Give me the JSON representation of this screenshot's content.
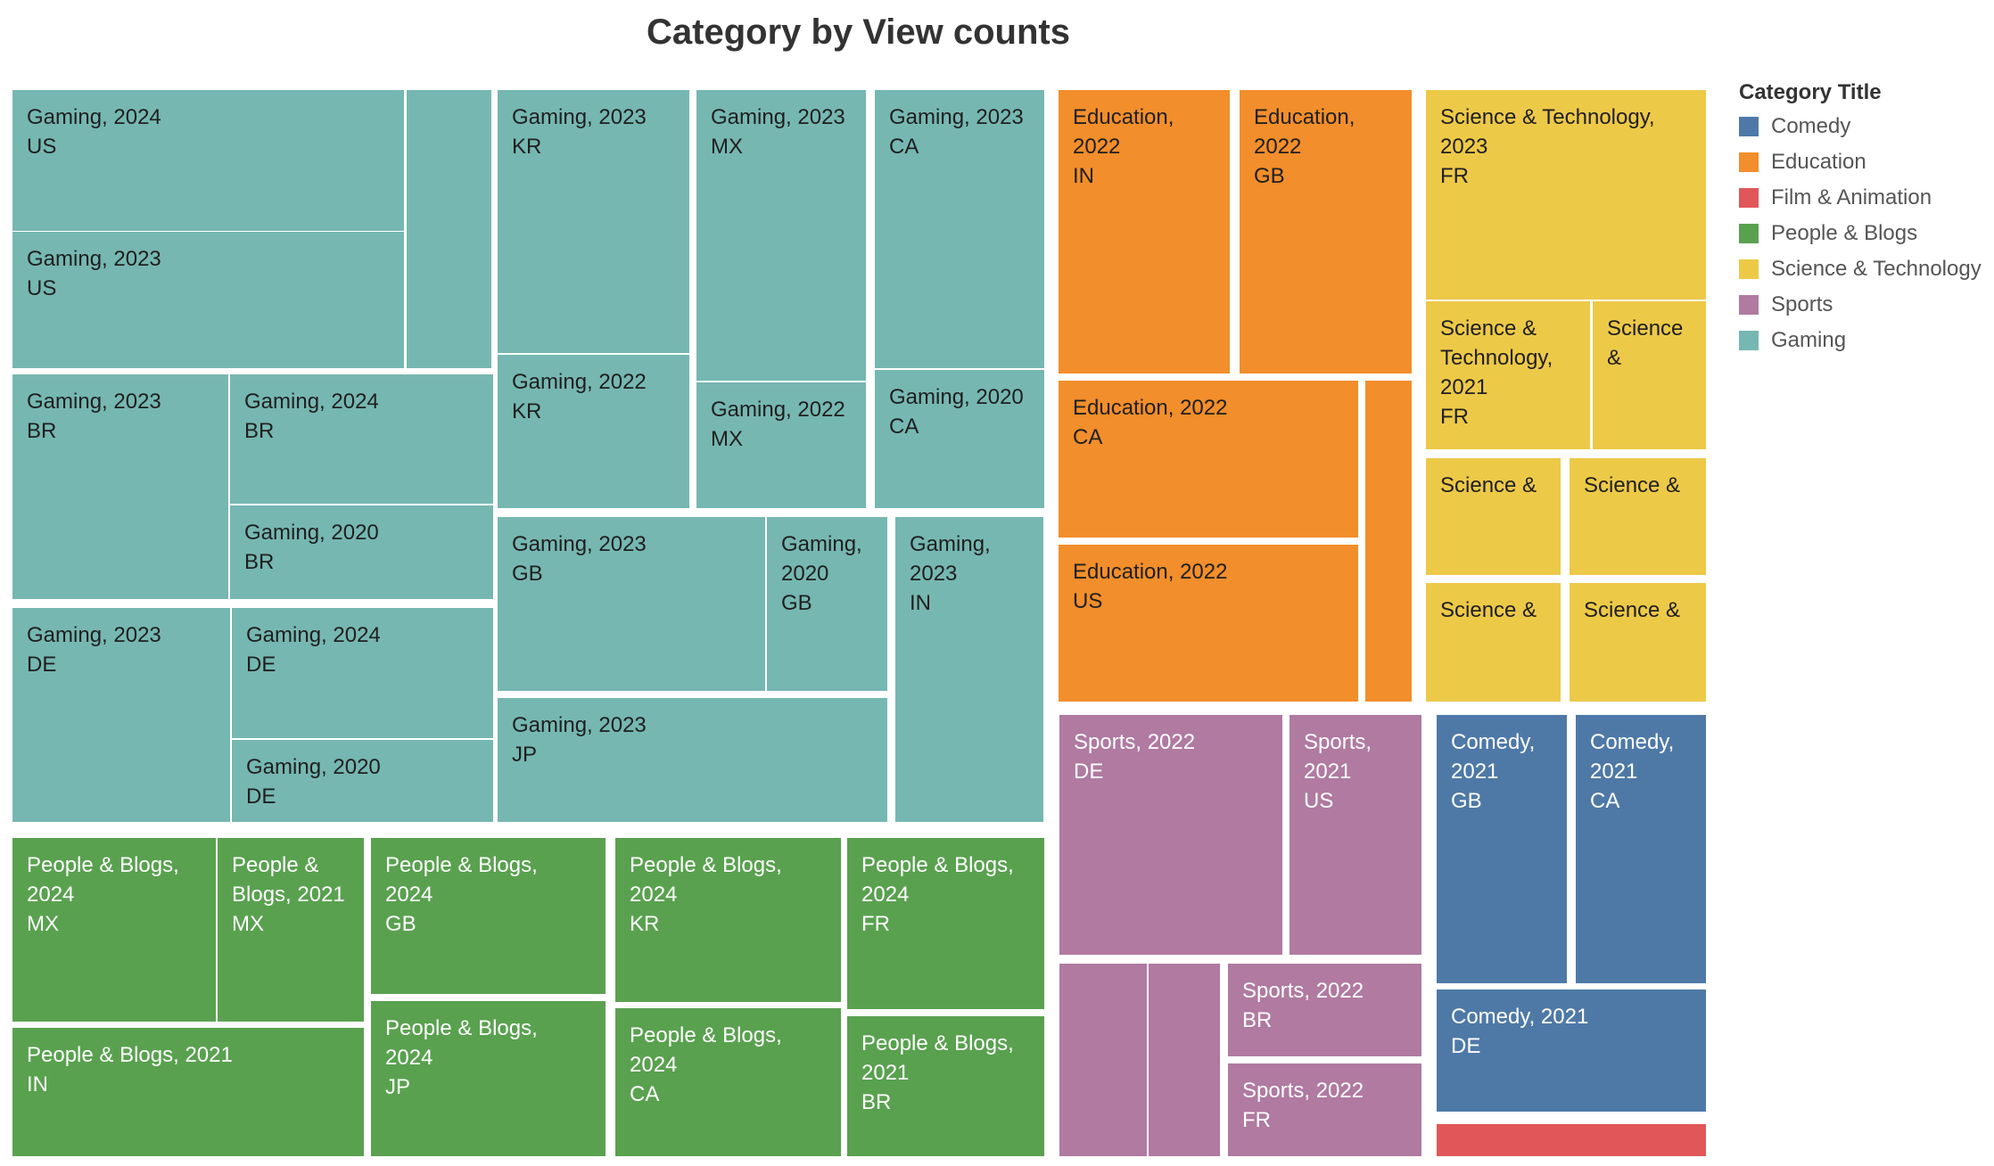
{
  "chart_data": {
    "type": "treemap",
    "title": "Category by View counts",
    "legend_title": "Category Title",
    "legend_position": "right",
    "legend": [
      {
        "name": "Comedy",
        "color": "#4e79a7"
      },
      {
        "name": "Education",
        "color": "#f28e2b"
      },
      {
        "name": "Film & Animation",
        "color": "#e15759"
      },
      {
        "name": "People & Blogs",
        "color": "#59a14f"
      },
      {
        "name": "Science & Technology",
        "color": "#edc948"
      },
      {
        "name": "Sports",
        "color": "#b07aa1"
      },
      {
        "name": "Gaming",
        "color": "#76b7b2"
      }
    ],
    "tiles": [
      {
        "category": "Gaming",
        "year": "2024",
        "country": "US",
        "label": "Gaming, 2024\nUS"
      },
      {
        "category": "Gaming",
        "year": "",
        "country": "",
        "label": ""
      },
      {
        "category": "Gaming",
        "year": "2023",
        "country": "US",
        "label": "Gaming, 2023\nUS"
      },
      {
        "category": "Gaming",
        "year": "2023",
        "country": "BR",
        "label": "Gaming, 2023\nBR"
      },
      {
        "category": "Gaming",
        "year": "2024",
        "country": "BR",
        "label": "Gaming, 2024\nBR"
      },
      {
        "category": "Gaming",
        "year": "2020",
        "country": "BR",
        "label": "Gaming, 2020\nBR"
      },
      {
        "category": "Gaming",
        "year": "2023",
        "country": "DE",
        "label": "Gaming, 2023\nDE"
      },
      {
        "category": "Gaming",
        "year": "2024",
        "country": "DE",
        "label": "Gaming, 2024\nDE"
      },
      {
        "category": "Gaming",
        "year": "2020",
        "country": "DE",
        "label": "Gaming, 2020\nDE"
      },
      {
        "category": "Gaming",
        "year": "2023",
        "country": "KR",
        "label": "Gaming, 2023\nKR"
      },
      {
        "category": "Gaming",
        "year": "2022",
        "country": "KR",
        "label": "Gaming, 2022\nKR"
      },
      {
        "category": "Gaming",
        "year": "2023",
        "country": "MX",
        "label": "Gaming, 2023\nMX"
      },
      {
        "category": "Gaming",
        "year": "2022",
        "country": "MX",
        "label": "Gaming, 2022\nMX"
      },
      {
        "category": "Gaming",
        "year": "2023",
        "country": "CA",
        "label": "Gaming, 2023\nCA"
      },
      {
        "category": "Gaming",
        "year": "2020",
        "country": "CA",
        "label": "Gaming, 2020\nCA"
      },
      {
        "category": "Gaming",
        "year": "2023",
        "country": "GB",
        "label": "Gaming, 2023\nGB"
      },
      {
        "category": "Gaming",
        "year": "2020",
        "country": "GB",
        "label": "Gaming,\n2020\nGB"
      },
      {
        "category": "Gaming",
        "year": "2023",
        "country": "IN",
        "label": "Gaming,\n2023\nIN"
      },
      {
        "category": "Gaming",
        "year": "2023",
        "country": "JP",
        "label": "Gaming, 2023\nJP"
      },
      {
        "category": "Education",
        "year": "2022",
        "country": "IN",
        "label": "Education,\n2022\nIN"
      },
      {
        "category": "Education",
        "year": "2022",
        "country": "GB",
        "label": "Education,\n2022\nGB"
      },
      {
        "category": "Education",
        "year": "2022",
        "country": "CA",
        "label": "Education, 2022\nCA"
      },
      {
        "category": "Education",
        "year": "",
        "country": "",
        "label": ""
      },
      {
        "category": "Education",
        "year": "2022",
        "country": "US",
        "label": "Education, 2022\nUS"
      },
      {
        "category": "Science & Technology",
        "year": "2023",
        "country": "FR",
        "label": "Science & Technology,\n2023\nFR"
      },
      {
        "category": "Science & Technology",
        "year": "2021",
        "country": "FR",
        "label": "Science &\nTechnology,\n2021\nFR"
      },
      {
        "category": "Science & Technology",
        "year": "",
        "country": "",
        "label": "Science\n&"
      },
      {
        "category": "Science & Technology",
        "year": "",
        "country": "",
        "label": "Science &"
      },
      {
        "category": "Science & Technology",
        "year": "",
        "country": "",
        "label": "Science &"
      },
      {
        "category": "Science & Technology",
        "year": "",
        "country": "",
        "label": "Science &"
      },
      {
        "category": "Science & Technology",
        "year": "",
        "country": "",
        "label": "Science &"
      },
      {
        "category": "People & Blogs",
        "year": "2024",
        "country": "MX",
        "label": "People & Blogs,\n2024\nMX"
      },
      {
        "category": "People & Blogs",
        "year": "2021",
        "country": "MX",
        "label": "People &\nBlogs, 2021\nMX"
      },
      {
        "category": "People & Blogs",
        "year": "2021",
        "country": "IN",
        "label": "People & Blogs, 2021\nIN"
      },
      {
        "category": "People & Blogs",
        "year": "2024",
        "country": "GB",
        "label": "People & Blogs,\n2024\nGB"
      },
      {
        "category": "People & Blogs",
        "year": "2024",
        "country": "JP",
        "label": "People & Blogs,\n2024\nJP"
      },
      {
        "category": "People & Blogs",
        "year": "2024",
        "country": "KR",
        "label": "People & Blogs,\n2024\nKR"
      },
      {
        "category": "People & Blogs",
        "year": "2024",
        "country": "CA",
        "label": "People & Blogs,\n2024\nCA"
      },
      {
        "category": "People & Blogs",
        "year": "2024",
        "country": "FR",
        "label": "People & Blogs,\n2024\nFR"
      },
      {
        "category": "People & Blogs",
        "year": "2021",
        "country": "BR",
        "label": "People & Blogs,\n2021\nBR"
      },
      {
        "category": "Sports",
        "year": "2022",
        "country": "DE",
        "label": "Sports, 2022\nDE"
      },
      {
        "category": "Sports",
        "year": "2021",
        "country": "US",
        "label": "Sports,\n2021\nUS"
      },
      {
        "category": "Sports",
        "year": "",
        "country": "",
        "label": ""
      },
      {
        "category": "Sports",
        "year": "",
        "country": "",
        "label": ""
      },
      {
        "category": "Sports",
        "year": "2022",
        "country": "BR",
        "label": "Sports, 2022\nBR"
      },
      {
        "category": "Sports",
        "year": "2022",
        "country": "FR",
        "label": "Sports, 2022\nFR"
      },
      {
        "category": "Comedy",
        "year": "2021",
        "country": "GB",
        "label": "Comedy,\n2021\nGB"
      },
      {
        "category": "Comedy",
        "year": "2021",
        "country": "CA",
        "label": "Comedy,\n2021\nCA"
      },
      {
        "category": "Comedy",
        "year": "2021",
        "country": "DE",
        "label": "Comedy, 2021\nDE"
      },
      {
        "category": "Film & Animation",
        "year": "",
        "country": "",
        "label": ""
      }
    ]
  }
}
